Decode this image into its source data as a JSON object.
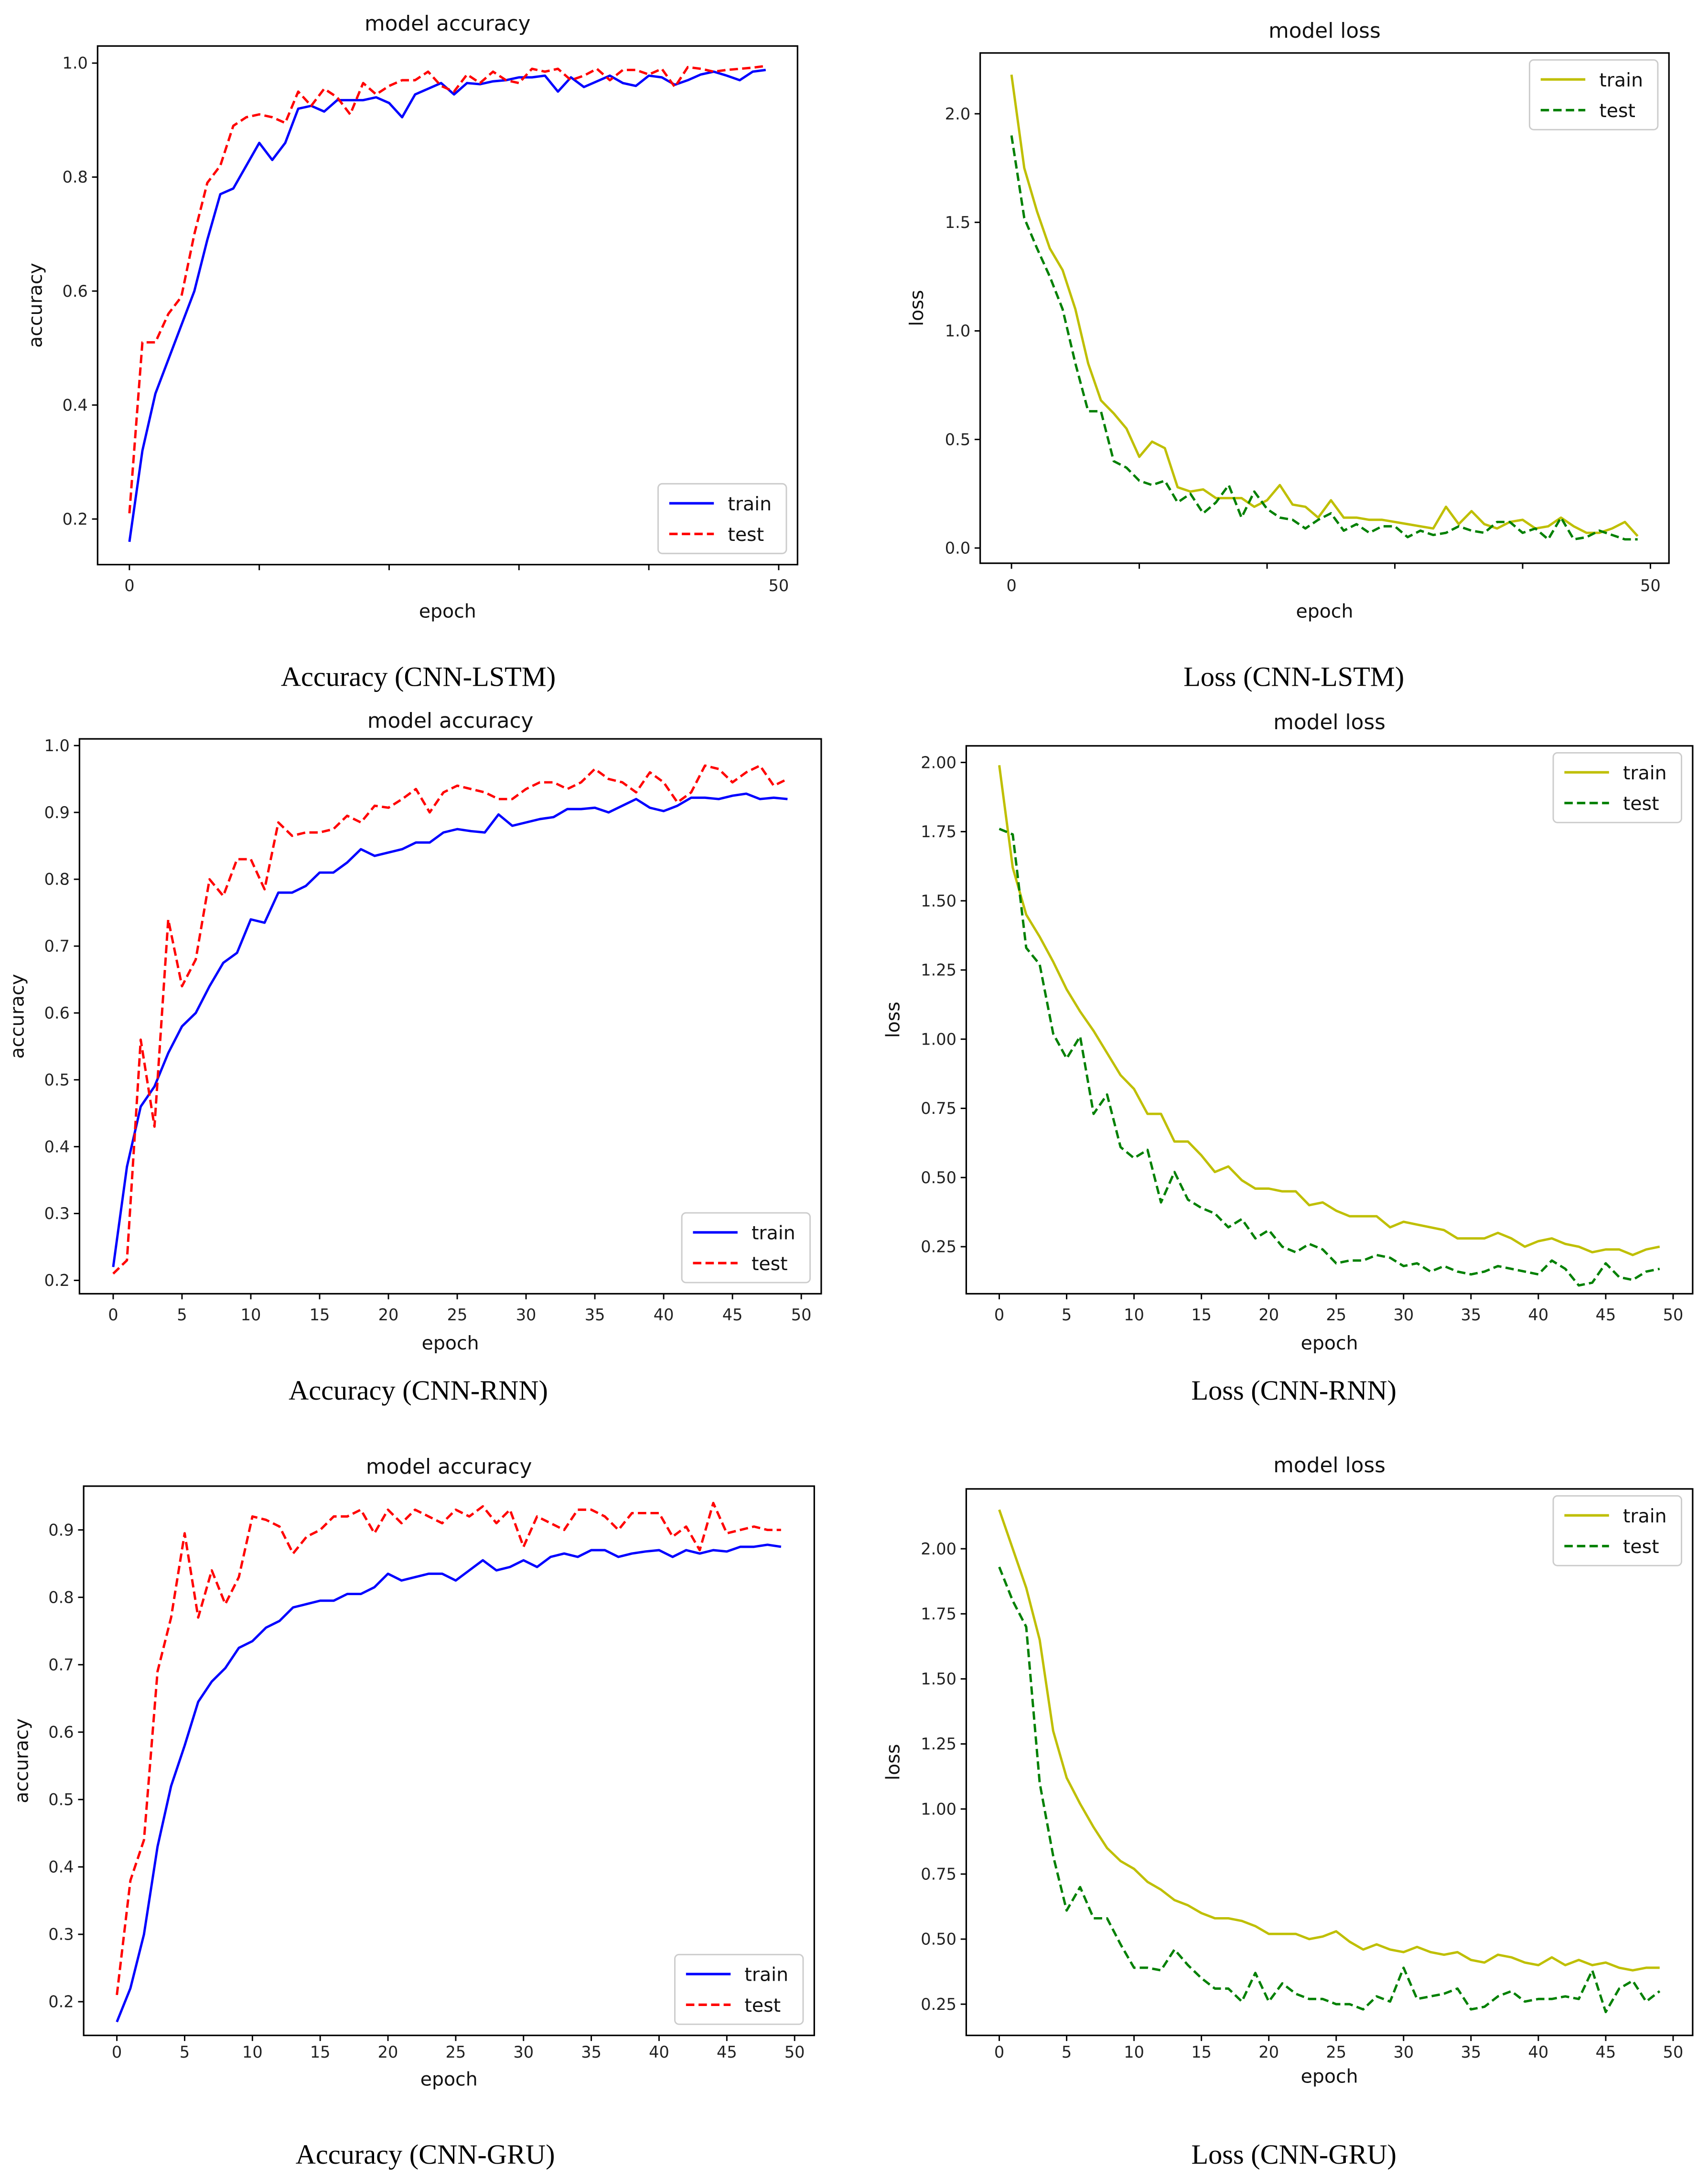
{
  "chart_data": [
    {
      "type": "line",
      "title": "model accuracy",
      "xlabel": "epoch",
      "ylabel": "accuracy",
      "caption": "Accuracy (CNN-LSTM)",
      "xlim": [
        -2.45,
        51.45
      ],
      "ylim": [
        0.12,
        1.03
      ],
      "xticks": [
        0,
        50
      ],
      "xminor": [
        10,
        20,
        30,
        40
      ],
      "yticks": [
        0.2,
        0.4,
        0.6,
        0.8,
        1.0
      ],
      "ytick_labels": [
        "0.2",
        "0.4",
        "0.6",
        "0.8",
        "1.0"
      ],
      "legend": "bottom-right",
      "grid": false,
      "series": [
        {
          "name": "train",
          "color": "#0000ff",
          "style": "solid",
          "values": [
            0.16,
            0.32,
            0.42,
            0.48,
            0.54,
            0.6,
            0.69,
            0.77,
            0.78,
            0.82,
            0.86,
            0.83,
            0.86,
            0.92,
            0.925,
            0.915,
            0.935,
            0.935,
            0.935,
            0.94,
            0.93,
            0.905,
            0.945,
            0.955,
            0.965,
            0.945,
            0.965,
            0.963,
            0.968,
            0.97,
            0.975,
            0.975,
            0.978,
            0.95,
            0.975,
            0.958,
            0.968,
            0.978,
            0.965,
            0.96,
            0.978,
            0.975,
            0.962,
            0.97,
            0.98,
            0.985,
            0.978,
            0.97,
            0.985,
            0.988
          ]
        },
        {
          "name": "test",
          "color": "#ff0000",
          "style": "dashed",
          "values": [
            0.21,
            0.51,
            0.51,
            0.56,
            0.59,
            0.7,
            0.79,
            0.82,
            0.89,
            0.905,
            0.91,
            0.905,
            0.895,
            0.95,
            0.925,
            0.955,
            0.94,
            0.91,
            0.965,
            0.945,
            0.96,
            0.97,
            0.97,
            0.985,
            0.96,
            0.95,
            0.98,
            0.965,
            0.985,
            0.97,
            0.965,
            0.99,
            0.985,
            0.99,
            0.97,
            0.978,
            0.99,
            0.97,
            0.988,
            0.988,
            0.98,
            0.99,
            0.958,
            0.993,
            0.99,
            0.985,
            0.988,
            0.99,
            0.992,
            0.995
          ]
        }
      ]
    },
    {
      "type": "line",
      "title": "model loss",
      "xlabel": "epoch",
      "ylabel": "loss",
      "caption": "Loss (CNN-LSTM)",
      "xlim": [
        -2.45,
        51.45
      ],
      "ylim": [
        -0.07,
        2.28
      ],
      "xticks": [
        0,
        50
      ],
      "xminor": [
        10,
        20,
        30,
        40
      ],
      "yticks": [
        0.0,
        0.5,
        1.0,
        1.5,
        2.0
      ],
      "ytick_labels": [
        "0.0",
        "0.5",
        "1.0",
        "1.5",
        "2.0"
      ],
      "legend": "top-right",
      "grid": false,
      "series": [
        {
          "name": "train",
          "color": "#bfbf00",
          "style": "solid",
          "values": [
            2.18,
            1.75,
            1.55,
            1.38,
            1.28,
            1.1,
            0.85,
            0.68,
            0.62,
            0.55,
            0.42,
            0.49,
            0.46,
            0.28,
            0.26,
            0.27,
            0.23,
            0.23,
            0.23,
            0.19,
            0.22,
            0.29,
            0.2,
            0.19,
            0.14,
            0.22,
            0.14,
            0.14,
            0.13,
            0.13,
            0.12,
            0.11,
            0.1,
            0.09,
            0.19,
            0.11,
            0.17,
            0.11,
            0.09,
            0.12,
            0.13,
            0.09,
            0.1,
            0.14,
            0.1,
            0.07,
            0.07,
            0.09,
            0.12,
            0.055
          ]
        },
        {
          "name": "test",
          "color": "#008000",
          "style": "dashed",
          "values": [
            1.9,
            1.52,
            1.38,
            1.25,
            1.1,
            0.85,
            0.63,
            0.63,
            0.4,
            0.37,
            0.31,
            0.29,
            0.31,
            0.21,
            0.25,
            0.16,
            0.21,
            0.29,
            0.14,
            0.26,
            0.18,
            0.14,
            0.13,
            0.09,
            0.13,
            0.16,
            0.08,
            0.11,
            0.07,
            0.1,
            0.1,
            0.05,
            0.08,
            0.06,
            0.07,
            0.1,
            0.08,
            0.07,
            0.12,
            0.12,
            0.07,
            0.09,
            0.04,
            0.14,
            0.04,
            0.05,
            0.08,
            0.06,
            0.04,
            0.04
          ]
        }
      ]
    },
    {
      "type": "line",
      "title": "model accuracy",
      "xlabel": "epoch",
      "ylabel": "accuracy",
      "caption": "Accuracy (CNN-RNN)",
      "xlim": [
        -2.45,
        51.45
      ],
      "ylim": [
        0.18,
        1.01
      ],
      "xticks": [
        0,
        5,
        10,
        15,
        20,
        25,
        30,
        35,
        40,
        45,
        50
      ],
      "xminor": [],
      "yticks": [
        0.2,
        0.3,
        0.4,
        0.5,
        0.6,
        0.7,
        0.8,
        0.9,
        1.0
      ],
      "ytick_labels": [
        "0.2",
        "0.3",
        "0.4",
        "0.5",
        "0.6",
        "0.7",
        "0.8",
        "0.9",
        "1.0"
      ],
      "legend": "bottom-right",
      "grid": false,
      "series": [
        {
          "name": "train",
          "color": "#0000ff",
          "style": "solid",
          "values": [
            0.22,
            0.37,
            0.46,
            0.49,
            0.54,
            0.58,
            0.6,
            0.64,
            0.675,
            0.69,
            0.74,
            0.735,
            0.78,
            0.78,
            0.79,
            0.81,
            0.81,
            0.825,
            0.845,
            0.835,
            0.84,
            0.845,
            0.855,
            0.855,
            0.87,
            0.875,
            0.872,
            0.87,
            0.897,
            0.88,
            0.885,
            0.89,
            0.893,
            0.905,
            0.905,
            0.907,
            0.9,
            0.91,
            0.92,
            0.907,
            0.902,
            0.91,
            0.922,
            0.922,
            0.92,
            0.925,
            0.928,
            0.92,
            0.922,
            0.92
          ]
        },
        {
          "name": "test",
          "color": "#ff0000",
          "style": "dashed",
          "values": [
            0.21,
            0.23,
            0.56,
            0.43,
            0.74,
            0.64,
            0.68,
            0.8,
            0.775,
            0.83,
            0.83,
            0.785,
            0.885,
            0.865,
            0.87,
            0.87,
            0.875,
            0.895,
            0.885,
            0.91,
            0.907,
            0.92,
            0.935,
            0.9,
            0.93,
            0.94,
            0.935,
            0.93,
            0.92,
            0.92,
            0.935,
            0.945,
            0.945,
            0.935,
            0.945,
            0.965,
            0.95,
            0.945,
            0.93,
            0.96,
            0.945,
            0.915,
            0.93,
            0.97,
            0.965,
            0.945,
            0.96,
            0.97,
            0.94,
            0.95
          ]
        }
      ]
    },
    {
      "type": "line",
      "title": "model loss",
      "xlabel": "epoch",
      "ylabel": "loss",
      "caption": "Loss (CNN-RNN)",
      "xlim": [
        -2.45,
        51.45
      ],
      "ylim": [
        0.08,
        2.06
      ],
      "xticks": [
        0,
        5,
        10,
        15,
        20,
        25,
        30,
        35,
        40,
        45,
        50
      ],
      "xminor": [],
      "yticks": [
        0.25,
        0.5,
        0.75,
        1.0,
        1.25,
        1.5,
        1.75,
        2.0
      ],
      "ytick_labels": [
        "0.25",
        "0.50",
        "0.75",
        "1.00",
        "1.25",
        "1.50",
        "1.75",
        "2.00"
      ],
      "legend": "top-right",
      "grid": false,
      "series": [
        {
          "name": "train",
          "color": "#bfbf00",
          "style": "solid",
          "values": [
            1.99,
            1.62,
            1.45,
            1.37,
            1.28,
            1.18,
            1.1,
            1.03,
            0.95,
            0.87,
            0.82,
            0.73,
            0.73,
            0.63,
            0.63,
            0.58,
            0.52,
            0.54,
            0.49,
            0.46,
            0.46,
            0.45,
            0.45,
            0.4,
            0.41,
            0.38,
            0.36,
            0.36,
            0.36,
            0.32,
            0.34,
            0.33,
            0.32,
            0.31,
            0.28,
            0.28,
            0.28,
            0.3,
            0.28,
            0.25,
            0.27,
            0.28,
            0.26,
            0.25,
            0.23,
            0.24,
            0.24,
            0.22,
            0.24,
            0.25
          ]
        },
        {
          "name": "test",
          "color": "#008000",
          "style": "dashed",
          "values": [
            1.76,
            1.74,
            1.33,
            1.27,
            1.02,
            0.93,
            1.01,
            0.73,
            0.8,
            0.61,
            0.57,
            0.6,
            0.41,
            0.52,
            0.42,
            0.39,
            0.37,
            0.32,
            0.35,
            0.28,
            0.31,
            0.25,
            0.23,
            0.26,
            0.24,
            0.19,
            0.2,
            0.2,
            0.22,
            0.21,
            0.18,
            0.19,
            0.16,
            0.18,
            0.16,
            0.15,
            0.16,
            0.18,
            0.17,
            0.16,
            0.15,
            0.2,
            0.17,
            0.11,
            0.12,
            0.19,
            0.14,
            0.13,
            0.16,
            0.17
          ]
        }
      ]
    },
    {
      "type": "line",
      "title": "model accuracy",
      "xlabel": "epoch",
      "ylabel": "accuracy",
      "caption": "Accuracy (CNN-GRU)",
      "xlim": [
        -2.45,
        51.45
      ],
      "ylim": [
        0.15,
        0.965
      ],
      "xticks": [
        0,
        5,
        10,
        15,
        20,
        25,
        30,
        35,
        40,
        45,
        50
      ],
      "xminor": [],
      "yticks": [
        0.2,
        0.3,
        0.4,
        0.5,
        0.6,
        0.7,
        0.8,
        0.9
      ],
      "ytick_labels": [
        "0.2",
        "0.3",
        "0.4",
        "0.5",
        "0.6",
        "0.7",
        "0.8",
        "0.9"
      ],
      "legend": "bottom-right",
      "grid": false,
      "series": [
        {
          "name": "train",
          "color": "#0000ff",
          "style": "solid",
          "values": [
            0.17,
            0.22,
            0.3,
            0.43,
            0.52,
            0.58,
            0.645,
            0.675,
            0.695,
            0.725,
            0.735,
            0.755,
            0.765,
            0.785,
            0.79,
            0.795,
            0.795,
            0.805,
            0.805,
            0.815,
            0.835,
            0.825,
            0.83,
            0.835,
            0.835,
            0.825,
            0.84,
            0.855,
            0.84,
            0.845,
            0.855,
            0.845,
            0.86,
            0.865,
            0.86,
            0.87,
            0.87,
            0.86,
            0.865,
            0.868,
            0.87,
            0.86,
            0.87,
            0.865,
            0.87,
            0.868,
            0.875,
            0.875,
            0.878,
            0.875
          ]
        },
        {
          "name": "test",
          "color": "#ff0000",
          "style": "dashed",
          "values": [
            0.21,
            0.38,
            0.44,
            0.69,
            0.77,
            0.895,
            0.77,
            0.84,
            0.79,
            0.83,
            0.92,
            0.915,
            0.905,
            0.865,
            0.89,
            0.9,
            0.92,
            0.92,
            0.93,
            0.895,
            0.93,
            0.91,
            0.93,
            0.92,
            0.91,
            0.93,
            0.92,
            0.935,
            0.91,
            0.93,
            0.875,
            0.92,
            0.91,
            0.9,
            0.93,
            0.93,
            0.92,
            0.9,
            0.925,
            0.925,
            0.925,
            0.89,
            0.905,
            0.87,
            0.94,
            0.895,
            0.9,
            0.905,
            0.9,
            0.9
          ]
        }
      ]
    },
    {
      "type": "line",
      "title": "model loss",
      "xlabel": "epoch",
      "ylabel": "loss",
      "caption": "Loss (CNN-GRU)",
      "xlim": [
        -2.45,
        51.45
      ],
      "ylim": [
        0.13,
        2.23
      ],
      "xticks": [
        0,
        5,
        10,
        15,
        20,
        25,
        30,
        35,
        40,
        45,
        50
      ],
      "xminor": [],
      "yticks": [
        0.25,
        0.5,
        0.75,
        1.0,
        1.25,
        1.5,
        1.75,
        2.0
      ],
      "ytick_labels": [
        "0.25",
        "0.50",
        "0.75",
        "1.00",
        "1.25",
        "1.50",
        "1.75",
        "2.00"
      ],
      "legend": "top-right",
      "grid": false,
      "series": [
        {
          "name": "train",
          "color": "#bfbf00",
          "style": "solid",
          "values": [
            2.15,
            2.0,
            1.85,
            1.65,
            1.3,
            1.12,
            1.02,
            0.93,
            0.85,
            0.8,
            0.77,
            0.72,
            0.69,
            0.65,
            0.63,
            0.6,
            0.58,
            0.58,
            0.57,
            0.55,
            0.52,
            0.52,
            0.52,
            0.5,
            0.51,
            0.53,
            0.49,
            0.46,
            0.48,
            0.46,
            0.45,
            0.47,
            0.45,
            0.44,
            0.45,
            0.42,
            0.41,
            0.44,
            0.43,
            0.41,
            0.4,
            0.43,
            0.4,
            0.42,
            0.4,
            0.41,
            0.39,
            0.38,
            0.39,
            0.39
          ]
        },
        {
          "name": "test",
          "color": "#008000",
          "style": "dashed",
          "values": [
            1.93,
            1.8,
            1.7,
            1.1,
            0.82,
            0.61,
            0.7,
            0.58,
            0.58,
            0.48,
            0.39,
            0.39,
            0.38,
            0.46,
            0.4,
            0.35,
            0.31,
            0.31,
            0.26,
            0.37,
            0.26,
            0.33,
            0.29,
            0.27,
            0.27,
            0.25,
            0.25,
            0.23,
            0.28,
            0.26,
            0.39,
            0.27,
            0.28,
            0.29,
            0.31,
            0.23,
            0.24,
            0.28,
            0.3,
            0.26,
            0.27,
            0.27,
            0.28,
            0.27,
            0.38,
            0.22,
            0.31,
            0.34,
            0.26,
            0.3
          ]
        }
      ]
    }
  ]
}
